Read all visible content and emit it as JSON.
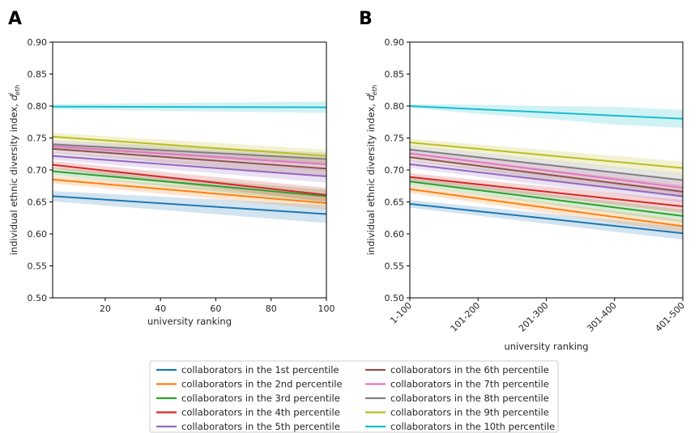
{
  "chart_data": [
    {
      "panel_label": "A",
      "type": "line",
      "xlabel": "university ranking",
      "ylabel": "individual ethnic diversity index,",
      "ylabel_symbol": "d",
      "ylabel_sup": "i",
      "ylabel_sub": "eth",
      "xlim": [
        1,
        100
      ],
      "ylim": [
        0.5,
        0.9
      ],
      "xticks": [
        20,
        40,
        60,
        80,
        100
      ],
      "yticks": [
        "0.50",
        "0.55",
        "0.60",
        "0.65",
        "0.70",
        "0.75",
        "0.80",
        "0.85",
        "0.90"
      ],
      "grid": false,
      "series": [
        {
          "name": "collaborators in the 1st percentile",
          "color": "#1f77b4",
          "x": [
            1,
            100
          ],
          "y": [
            0.659,
            0.631
          ],
          "band_lower": [
            0.651,
            0.617
          ],
          "band_upper": [
            0.667,
            0.645
          ]
        },
        {
          "name": "collaborators in the 2nd percentile",
          "color": "#ff7f0e",
          "x": [
            1,
            100
          ],
          "y": [
            0.685,
            0.648
          ],
          "band_lower": [
            0.679,
            0.638
          ],
          "band_upper": [
            0.691,
            0.658
          ]
        },
        {
          "name": "collaborators in the 3rd percentile",
          "color": "#2ca02c",
          "x": [
            1,
            100
          ],
          "y": [
            0.698,
            0.659
          ],
          "band_lower": [
            0.692,
            0.649
          ],
          "band_upper": [
            0.704,
            0.669
          ]
        },
        {
          "name": "collaborators in the 4th percentile",
          "color": "#d62728",
          "x": [
            1,
            100
          ],
          "y": [
            0.708,
            0.661
          ],
          "band_lower": [
            0.702,
            0.65
          ],
          "band_upper": [
            0.714,
            0.672
          ]
        },
        {
          "name": "collaborators in the 5th percentile",
          "color": "#9467bd",
          "x": [
            1,
            100
          ],
          "y": [
            0.722,
            0.69
          ],
          "band_lower": [
            0.716,
            0.68
          ],
          "band_upper": [
            0.728,
            0.7
          ]
        },
        {
          "name": "collaborators in the 6th percentile",
          "color": "#8c564b",
          "x": [
            1,
            100
          ],
          "y": [
            0.733,
            0.702
          ],
          "band_lower": [
            0.727,
            0.69
          ],
          "band_upper": [
            0.739,
            0.714
          ]
        },
        {
          "name": "collaborators in the 7th percentile",
          "color": "#e377c2",
          "x": [
            1,
            100
          ],
          "y": [
            0.737,
            0.709
          ],
          "band_lower": [
            0.731,
            0.698
          ],
          "band_upper": [
            0.743,
            0.72
          ]
        },
        {
          "name": "collaborators in the 8th percentile",
          "color": "#7f7f7f",
          "x": [
            1,
            100
          ],
          "y": [
            0.74,
            0.717
          ],
          "band_lower": [
            0.734,
            0.707
          ],
          "band_upper": [
            0.746,
            0.727
          ]
        },
        {
          "name": "collaborators in the 9th percentile",
          "color": "#bcbd22",
          "x": [
            1,
            100
          ],
          "y": [
            0.752,
            0.722
          ],
          "band_lower": [
            0.746,
            0.712
          ],
          "band_upper": [
            0.758,
            0.732
          ]
        },
        {
          "name": "collaborators in the 10th percentile",
          "color": "#17becf",
          "x": [
            1,
            100
          ],
          "y": [
            0.799,
            0.798
          ],
          "band_lower": [
            0.795,
            0.789
          ],
          "band_upper": [
            0.803,
            0.807
          ]
        }
      ]
    },
    {
      "panel_label": "B",
      "type": "line",
      "xlabel": "university ranking",
      "ylabel": "individual ethnic diversity index,",
      "ylabel_symbol": "d",
      "ylabel_sup": "i",
      "ylabel_sub": "eth",
      "categories": [
        "1-100",
        "101-200",
        "201-300",
        "301-400",
        "401-500"
      ],
      "ylim": [
        0.5,
        0.9
      ],
      "yticks": [
        "0.50",
        "0.55",
        "0.60",
        "0.65",
        "0.70",
        "0.75",
        "0.80",
        "0.85",
        "0.90"
      ],
      "grid": false,
      "series": [
        {
          "name": "collaborators in the 1st percentile",
          "color": "#1f77b4",
          "y": [
            0.647,
            0.6355,
            0.624,
            0.6125,
            0.601
          ],
          "band_lower": [
            0.641,
            0.6285,
            0.616,
            0.6035,
            0.591
          ],
          "band_upper": [
            0.653,
            0.6425,
            0.632,
            0.6215,
            0.611
          ]
        },
        {
          "name": "collaborators in the 2nd percentile",
          "color": "#ff7f0e",
          "y": [
            0.67,
            0.6555,
            0.641,
            0.6265,
            0.612
          ],
          "band_lower": [
            0.664,
            0.6485,
            0.633,
            0.6175,
            0.602
          ],
          "band_upper": [
            0.676,
            0.6625,
            0.649,
            0.6355,
            0.622
          ]
        },
        {
          "name": "collaborators in the 3rd percentile",
          "color": "#2ca02c",
          "y": [
            0.682,
            0.6685,
            0.655,
            0.6415,
            0.628
          ],
          "band_lower": [
            0.676,
            0.6615,
            0.647,
            0.6325,
            0.618
          ],
          "band_upper": [
            0.688,
            0.6755,
            0.663,
            0.6505,
            0.638
          ]
        },
        {
          "name": "collaborators in the 4th percentile",
          "color": "#d62728",
          "y": [
            0.689,
            0.6775,
            0.666,
            0.6545,
            0.643
          ],
          "band_lower": [
            0.683,
            0.6705,
            0.658,
            0.6455,
            0.633
          ],
          "band_upper": [
            0.695,
            0.6845,
            0.674,
            0.6635,
            0.653
          ]
        },
        {
          "name": "collaborators in the 5th percentile",
          "color": "#9467bd",
          "y": [
            0.709,
            0.6965,
            0.684,
            0.6715,
            0.659
          ],
          "band_lower": [
            0.703,
            0.6895,
            0.676,
            0.6625,
            0.649
          ],
          "band_upper": [
            0.715,
            0.7035,
            0.692,
            0.6805,
            0.669
          ]
        },
        {
          "name": "collaborators in the 6th percentile",
          "color": "#8c564b",
          "y": [
            0.72,
            0.7065,
            0.693,
            0.6795,
            0.666
          ],
          "band_lower": [
            0.714,
            0.6995,
            0.685,
            0.6705,
            0.656
          ],
          "band_upper": [
            0.726,
            0.7135,
            0.701,
            0.6885,
            0.676
          ]
        },
        {
          "name": "collaborators in the 7th percentile",
          "color": "#e377c2",
          "y": [
            0.726,
            0.7125,
            0.699,
            0.6855,
            0.672
          ],
          "band_lower": [
            0.72,
            0.7055,
            0.691,
            0.6765,
            0.662
          ],
          "band_upper": [
            0.732,
            0.7195,
            0.707,
            0.6945,
            0.682
          ]
        },
        {
          "name": "collaborators in the 8th percentile",
          "color": "#7f7f7f",
          "y": [
            0.732,
            0.72,
            0.708,
            0.696,
            0.684
          ],
          "band_lower": [
            0.726,
            0.713,
            0.7,
            0.687,
            0.674
          ],
          "band_upper": [
            0.738,
            0.727,
            0.716,
            0.705,
            0.694
          ]
        },
        {
          "name": "collaborators in the 9th percentile",
          "color": "#bcbd22",
          "y": [
            0.743,
            0.733,
            0.723,
            0.713,
            0.703
          ],
          "band_lower": [
            0.737,
            0.726,
            0.715,
            0.704,
            0.693
          ],
          "band_upper": [
            0.749,
            0.74,
            0.731,
            0.722,
            0.713
          ]
        },
        {
          "name": "collaborators in the 10th percentile",
          "color": "#17becf",
          "y": [
            0.8,
            0.795,
            0.79,
            0.785,
            0.78
          ],
          "band_lower": [
            0.797,
            0.788,
            0.78,
            0.771,
            0.766
          ],
          "band_upper": [
            0.803,
            0.802,
            0.8,
            0.799,
            0.794
          ]
        }
      ]
    }
  ],
  "legend": {
    "placement": "bottom-center",
    "columns": 2,
    "entries": [
      {
        "label": "collaborators in the 1st percentile",
        "color": "#1f77b4"
      },
      {
        "label": "collaborators in the 2nd percentile",
        "color": "#ff7f0e"
      },
      {
        "label": "collaborators in the 3rd percentile",
        "color": "#2ca02c"
      },
      {
        "label": "collaborators in the 4th percentile",
        "color": "#d62728"
      },
      {
        "label": "collaborators in the 5th percentile",
        "color": "#9467bd"
      },
      {
        "label": "collaborators in the 6th percentile",
        "color": "#8c564b"
      },
      {
        "label": "collaborators in the 7th percentile",
        "color": "#e377c2"
      },
      {
        "label": "collaborators in the 8th percentile",
        "color": "#7f7f7f"
      },
      {
        "label": "collaborators in the 9th percentile",
        "color": "#bcbd22"
      },
      {
        "label": "collaborators in the 10th percentile",
        "color": "#17becf"
      }
    ]
  }
}
